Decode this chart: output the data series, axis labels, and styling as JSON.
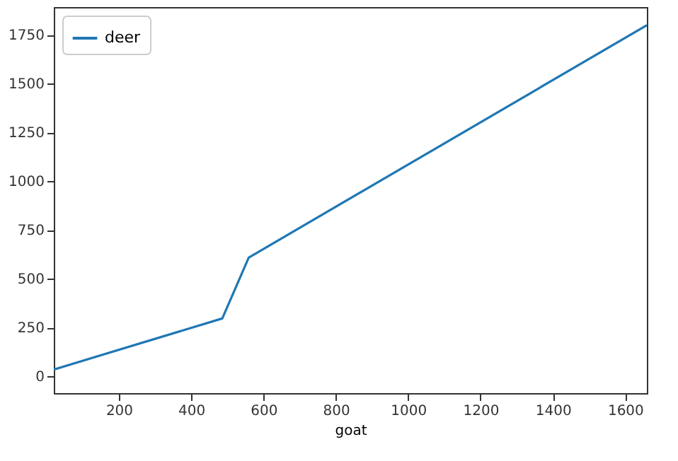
{
  "chart_data": {
    "type": "line",
    "xlabel": "goat",
    "x": [
      20,
      486,
      559,
      1660
    ],
    "series": [
      {
        "name": "deer",
        "color": "#1f77b4",
        "values": [
          34,
          296,
          608,
          1800
        ]
      }
    ],
    "xlim": [
      20,
      1660
    ],
    "xticks": [
      200,
      400,
      600,
      800,
      1000,
      1200,
      1400,
      1600
    ],
    "ylim": [
      -87,
      1893
    ],
    "yticks": [
      0,
      250,
      500,
      750,
      1000,
      1250,
      1500,
      1750
    ],
    "grid": false,
    "legend": "top left"
  }
}
